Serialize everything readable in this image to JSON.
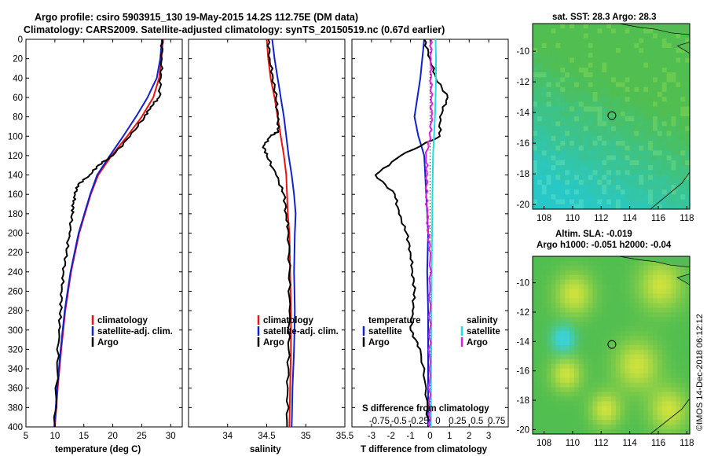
{
  "title_line1": "Argo profile: csiro 5903915_130 19-May-2015 14.2S 112.75E (DM data)",
  "title_line2": "Climatology: CARS2009. Satellite-adjusted climatology: synTS_20150519.nc (0.67d earlier)",
  "footer_stamp": "©IMOS 14-Dec-2018 06:12:12",
  "colors": {
    "climatology": "#ee1111",
    "satellite": "#1122cc",
    "argo": "#000000",
    "satellite_salinity": "#22dddd",
    "argo_salinity": "#dd22dd"
  },
  "depth_ticks": [
    "0",
    "20",
    "40",
    "60",
    "80",
    "100",
    "120",
    "140",
    "160",
    "180",
    "200",
    "220",
    "240",
    "260",
    "280",
    "300",
    "320",
    "340",
    "360",
    "380",
    "400"
  ],
  "chart_data": [
    {
      "type": "line",
      "name": "temperature",
      "xlabel": "temperature (deg C)",
      "ylabel": "",
      "xlim": [
        5,
        32
      ],
      "ylim": [
        400,
        0
      ],
      "xticks": [
        "5",
        "10",
        "15",
        "20",
        "25",
        "30"
      ],
      "xtick_values": [
        5,
        10,
        15,
        20,
        25,
        30
      ],
      "legend": [
        "climatology",
        "satellite-adj. clim.",
        "Argo"
      ],
      "legend_position": "lower-right",
      "series": [
        {
          "name": "climatology",
          "color": "#ee1111",
          "depth": [
            0,
            20,
            40,
            60,
            80,
            100,
            120,
            140,
            160,
            180,
            200,
            240,
            280,
            320,
            360,
            400
          ],
          "values": [
            28.7,
            28.4,
            28.0,
            27.0,
            25.0,
            22.5,
            19.8,
            17.5,
            16.2,
            15.2,
            14.2,
            12.8,
            11.8,
            11.1,
            10.5,
            10.0
          ]
        },
        {
          "name": "satellite-adj. clim.",
          "color": "#1122cc",
          "depth": [
            0,
            20,
            40,
            60,
            80,
            100,
            120,
            140,
            160,
            180,
            200,
            240,
            280,
            320,
            360,
            400
          ],
          "values": [
            28.5,
            28.2,
            27.6,
            26.0,
            24.0,
            21.8,
            19.5,
            17.3,
            16.1,
            15.1,
            14.1,
            12.7,
            11.7,
            11.0,
            10.4,
            9.9
          ]
        },
        {
          "name": "Argo",
          "color": "#000000",
          "depth": [
            0,
            20,
            40,
            60,
            70,
            80,
            100,
            120,
            130,
            140,
            150,
            160,
            170,
            180,
            200,
            220,
            240,
            260,
            280,
            300,
            340,
            400
          ],
          "values": [
            28.5,
            28.5,
            28.3,
            28.0,
            26.5,
            25.5,
            23.0,
            20.0,
            17.5,
            16.0,
            14.0,
            13.5,
            13.2,
            13.0,
            12.5,
            12.0,
            11.5,
            11.2,
            11.0,
            10.7,
            10.4,
            10.0
          ]
        }
      ]
    },
    {
      "type": "line",
      "name": "salinity",
      "xlabel": "salinity",
      "ylabel": "",
      "xlim": [
        33.5,
        35.5
      ],
      "ylim": [
        400,
        0
      ],
      "xticks": [
        "34",
        "34.5",
        "35",
        "35.5"
      ],
      "xtick_values": [
        34,
        34.5,
        35,
        35.5
      ],
      "legend": [
        "climatology",
        "satellite-adj. clim.",
        "Argo"
      ],
      "legend_position": "lower-right",
      "series": [
        {
          "name": "climatology",
          "color": "#ee1111",
          "depth": [
            0,
            20,
            40,
            60,
            80,
            100,
            120,
            140,
            160,
            180,
            200,
            240,
            280,
            320,
            360,
            400
          ],
          "values": [
            34.5,
            34.52,
            34.55,
            34.6,
            34.64,
            34.68,
            34.72,
            34.75,
            34.76,
            34.77,
            34.79,
            34.8,
            34.81,
            34.81,
            34.8,
            34.79
          ]
        },
        {
          "name": "satellite-adj. clim.",
          "color": "#1122cc",
          "depth": [
            0,
            20,
            40,
            60,
            80,
            100,
            120,
            140,
            160,
            180,
            200,
            240,
            280,
            320,
            360,
            400
          ],
          "values": [
            34.57,
            34.6,
            34.64,
            34.68,
            34.72,
            34.75,
            34.78,
            34.82,
            34.85,
            34.87,
            34.86,
            34.85,
            34.86,
            34.85,
            34.83,
            34.82
          ]
        },
        {
          "name": "Argo",
          "color": "#000000",
          "depth": [
            0,
            20,
            40,
            60,
            80,
            95,
            100,
            110,
            120,
            140,
            160,
            180,
            200,
            240,
            280,
            320,
            360,
            400
          ],
          "values": [
            34.52,
            34.54,
            34.58,
            34.62,
            34.64,
            34.65,
            34.55,
            34.46,
            34.5,
            34.62,
            34.72,
            34.75,
            34.78,
            34.79,
            34.79,
            34.78,
            34.77,
            34.76
          ]
        }
      ]
    },
    {
      "type": "line",
      "name": "differences",
      "xlabel": "T difference from climatology",
      "xlabel2": "S difference from climatology",
      "xlim": [
        -4,
        4
      ],
      "ylim": [
        400,
        0
      ],
      "xticks": [
        "-3",
        "-2",
        "-1",
        "0",
        "1",
        "2",
        "3"
      ],
      "xtick_values": [
        -3,
        -2,
        -1,
        0,
        1,
        2,
        3
      ],
      "xticks_s": [
        "-0.75",
        "-0.5",
        "-0.25",
        "0",
        "0.25",
        "0.5",
        "0.75"
      ],
      "legend_temperature_title": "temperature",
      "legend_salinity_title": "salinity",
      "legend_temperature": [
        "satellite",
        "Argo"
      ],
      "legend_salinity": [
        "satellite",
        "Argo"
      ],
      "series": [
        {
          "name": "T satellite",
          "color": "#1122cc",
          "depth": [
            0,
            40,
            80,
            100,
            120,
            160,
            200,
            240,
            280,
            320,
            360,
            400
          ],
          "values": [
            -0.3,
            -0.5,
            -0.8,
            -0.6,
            -0.3,
            -0.2,
            -0.1,
            -0.15,
            -0.1,
            -0.1,
            -0.1,
            -0.1
          ]
        },
        {
          "name": "T Argo",
          "color": "#000000",
          "depth": [
            0,
            20,
            40,
            60,
            80,
            100,
            120,
            140,
            160,
            180,
            200,
            220,
            240,
            260,
            280,
            300,
            320,
            360,
            400
          ],
          "values": [
            -0.3,
            0.0,
            0.3,
            0.9,
            0.5,
            0.5,
            -1.5,
            -2.8,
            -1.8,
            -1.6,
            -1.2,
            -1.0,
            -0.9,
            -0.8,
            -0.9,
            -1.0,
            -0.5,
            -0.2,
            -0.1
          ]
        },
        {
          "name": "S satellite",
          "color": "#22dddd",
          "depth": [
            0,
            20,
            40,
            60,
            80,
            100,
            120,
            160,
            200,
            240,
            280,
            320,
            360,
            400
          ],
          "values": [
            0.28,
            0.3,
            0.3,
            0.28,
            0.25,
            0.2,
            0.15,
            0.12,
            0.1,
            0.08,
            0.07,
            0.06,
            0.05,
            0.04
          ]
        },
        {
          "name": "S Argo",
          "color": "#dd22dd",
          "depth": [
            0,
            20,
            40,
            60,
            80,
            100,
            120,
            140,
            160,
            180,
            200,
            220,
            260,
            300,
            340,
            380,
            400
          ],
          "values": [
            0.05,
            0.05,
            0.05,
            0.06,
            0.07,
            0.0,
            -0.2,
            -0.15,
            -0.2,
            -0.15,
            -0.1,
            0.02,
            0.0,
            -0.02,
            -0.03,
            -0.03,
            -0.02
          ]
        }
      ]
    }
  ],
  "maps": [
    {
      "name": "sst",
      "title": "sat. SST: 28.3 Argo: 28.3",
      "lat_ticks": [
        "-10",
        "-12",
        "-14",
        "-16",
        "-18",
        "-20"
      ],
      "lon_ticks": [
        "108",
        "110",
        "112",
        "114",
        "116",
        "118"
      ],
      "marker": {
        "lon": 112.75,
        "lat": -14.2
      }
    },
    {
      "name": "sla",
      "title1": "Altim. SLA: -0.019",
      "title2": "Argo h1000: -0.051 h2000: -0.04",
      "lat_ticks": [
        "-10",
        "-12",
        "-14",
        "-16",
        "-18",
        "-20"
      ],
      "lon_ticks": [
        "108",
        "110",
        "112",
        "114",
        "116",
        "118"
      ],
      "marker": {
        "lon": 112.75,
        "lat": -14.2
      }
    }
  ]
}
